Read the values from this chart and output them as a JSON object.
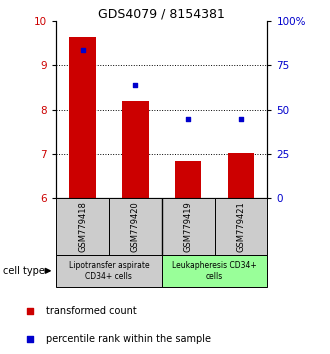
{
  "title": "GDS4079 / 8154381",
  "samples": [
    "GSM779418",
    "GSM779420",
    "GSM779419",
    "GSM779421"
  ],
  "bar_values": [
    9.65,
    8.2,
    6.85,
    7.02
  ],
  "scatter_values": [
    9.35,
    8.55,
    7.78,
    7.8
  ],
  "ylim_left": [
    6,
    10
  ],
  "ylim_right": [
    0,
    100
  ],
  "yticks_left": [
    6,
    7,
    8,
    9,
    10
  ],
  "yticks_right": [
    0,
    25,
    50,
    75,
    100
  ],
  "ytick_labels_right": [
    "0",
    "25",
    "50",
    "75",
    "100%"
  ],
  "bar_color": "#cc0000",
  "scatter_color": "#0000cc",
  "bar_bottom": 6,
  "group1_label": "Lipotransfer aspirate\nCD34+ cells",
  "group2_label": "Leukapheresis CD34+\ncells",
  "group1_color": "#cccccc",
  "group2_color": "#99ff99",
  "cell_type_label": "cell type",
  "legend_bar_label": "transformed count",
  "legend_scatter_label": "percentile rank within the sample",
  "title_fontsize": 9,
  "tick_fontsize": 7.5,
  "label_fontsize": 7
}
